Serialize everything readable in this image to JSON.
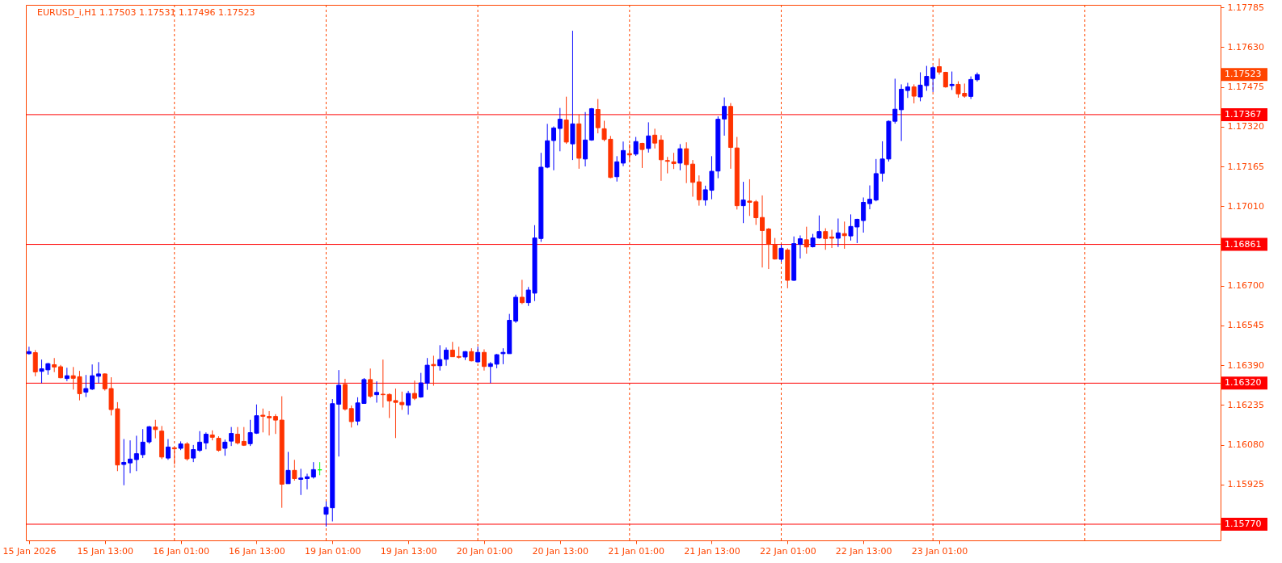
{
  "chart_data": {
    "type": "candlestick",
    "title": "EURUSD_i,H1 1.17503 1.17531 1.17496 1.17523",
    "categories": [
      "15 Jan 2026",
      null,
      null,
      null,
      null,
      null,
      null,
      null,
      null,
      null,
      null,
      null,
      "15 Jan 13:00",
      null,
      null,
      null,
      null,
      null,
      null,
      null,
      null,
      null,
      null,
      null,
      "16 Jan 01:00",
      null,
      null,
      null,
      null,
      null,
      null,
      null,
      null,
      null,
      null,
      null,
      "16 Jan 13:00",
      null,
      null,
      null,
      null,
      null,
      null,
      null,
      null,
      null,
      null,
      null,
      "19 Jan 01:00",
      null,
      null,
      null,
      null,
      null,
      null,
      null,
      null,
      null,
      null,
      null,
      "19 Jan 13:00",
      null,
      null,
      null,
      null,
      null,
      null,
      null,
      null,
      null,
      null,
      null,
      "20 Jan 01:00",
      null,
      null,
      null,
      null,
      null,
      null,
      null,
      null,
      null,
      null,
      null,
      "20 Jan 13:00",
      null,
      null,
      null,
      null,
      null,
      null,
      null,
      null,
      null,
      null,
      null,
      "21 Jan 01:00",
      null,
      null,
      null,
      null,
      null,
      null,
      null,
      null,
      null,
      null,
      null,
      "21 Jan 13:00",
      null,
      null,
      null,
      null,
      null,
      null,
      null,
      null,
      null,
      null,
      null,
      "22 Jan 01:00",
      null,
      null,
      null,
      null,
      null,
      null,
      null,
      null,
      null,
      null,
      null,
      "22 Jan 13:00",
      null,
      null,
      null,
      null,
      null,
      null,
      null,
      null,
      null,
      null,
      null,
      "23 Jan 01:00",
      null,
      null,
      null,
      null,
      null,
      null,
      null,
      null,
      null,
      null,
      null,
      null,
      null,
      null,
      null,
      null,
      null,
      null,
      null,
      null,
      null,
      null,
      null,
      null,
      null,
      null,
      null,
      null,
      null,
      null,
      null,
      null,
      null,
      null,
      null,
      null,
      null,
      null,
      null,
      null,
      null,
      null,
      null,
      null
    ],
    "ohlc": [
      [
        1.16435,
        1.16462,
        1.16431,
        1.16443
      ],
      [
        1.16439,
        1.16449,
        1.16347,
        1.16364
      ],
      [
        1.16366,
        1.16412,
        1.1632,
        1.16376
      ],
      [
        1.16372,
        1.16399,
        1.16353,
        1.16396
      ],
      [
        1.16392,
        1.16418,
        1.16363,
        1.16383
      ],
      [
        1.16384,
        1.16391,
        1.16339,
        1.16341
      ],
      [
        1.16338,
        1.1638,
        1.16328,
        1.16349
      ],
      [
        1.16349,
        1.16383,
        1.16295,
        1.16339
      ],
      [
        1.16345,
        1.16368,
        1.16253,
        1.16279
      ],
      [
        1.16285,
        1.16352,
        1.16266,
        1.16299
      ],
      [
        1.16297,
        1.16393,
        1.16293,
        1.16349
      ],
      [
        1.16347,
        1.16402,
        1.1632,
        1.16356
      ],
      [
        1.16356,
        1.16358,
        1.16291,
        1.16298
      ],
      [
        1.16299,
        1.16343,
        1.16194,
        1.16217
      ],
      [
        1.1622,
        1.16246,
        1.15977,
        1.16001
      ],
      [
        1.16003,
        1.16102,
        1.15922,
        1.16011
      ],
      [
        1.16009,
        1.16097,
        1.15969,
        1.16024
      ],
      [
        1.16022,
        1.16115,
        1.15977,
        1.16045
      ],
      [
        1.16041,
        1.16141,
        1.16028,
        1.1609
      ],
      [
        1.16091,
        1.16153,
        1.16084,
        1.1615
      ],
      [
        1.16149,
        1.16177,
        1.16105,
        1.16139
      ],
      [
        1.16133,
        1.16153,
        1.16024,
        1.16032
      ],
      [
        1.16028,
        1.16102,
        1.16021,
        1.16071
      ],
      [
        1.16068,
        1.1607,
        1.16003,
        1.16064
      ],
      [
        1.16066,
        1.16093,
        1.16059,
        1.16083
      ],
      [
        1.16083,
        1.1609,
        1.16018,
        1.16025
      ],
      [
        1.16028,
        1.16079,
        1.16012,
        1.16061
      ],
      [
        1.16058,
        1.16133,
        1.16052,
        1.1609
      ],
      [
        1.16087,
        1.16128,
        1.16062,
        1.16121
      ],
      [
        1.16118,
        1.16136,
        1.16097,
        1.16109
      ],
      [
        1.16105,
        1.16113,
        1.16053,
        1.16058
      ],
      [
        1.16066,
        1.161,
        1.16037,
        1.1609
      ],
      [
        1.16094,
        1.16149,
        1.16075,
        1.16124
      ],
      [
        1.16121,
        1.16149,
        1.16081,
        1.16087
      ],
      [
        1.16093,
        1.16149,
        1.16075,
        1.16078
      ],
      [
        1.16084,
        1.16177,
        1.16075,
        1.16127
      ],
      [
        1.16125,
        1.16237,
        1.16122,
        1.16193
      ],
      [
        1.16195,
        1.16221,
        1.16128,
        1.16191
      ],
      [
        1.1619,
        1.16211,
        1.16116,
        1.16185
      ],
      [
        1.1619,
        1.16199,
        1.16122,
        1.16176
      ],
      [
        1.16176,
        1.16269,
        1.15834,
        1.15926
      ],
      [
        1.15928,
        1.16052,
        1.15928,
        1.1598
      ],
      [
        1.1598,
        1.16021,
        1.1594,
        1.15948
      ],
      [
        1.15945,
        1.15986,
        1.15884,
        1.1595
      ],
      [
        1.15948,
        1.15967,
        1.15906,
        1.15955
      ],
      [
        1.15954,
        1.16012,
        1.15948,
        1.15983
      ],
      [
        1.15982,
        1.16012,
        1.15961,
        1.15982
      ],
      [
        1.15809,
        1.15859,
        1.15761,
        1.15836
      ],
      [
        1.15834,
        1.16258,
        1.15781,
        1.1624
      ],
      [
        1.16238,
        1.16371,
        1.16034,
        1.16312
      ],
      [
        1.16315,
        1.16337,
        1.16213,
        1.16219
      ],
      [
        1.16221,
        1.16233,
        1.16147,
        1.1617
      ],
      [
        1.16172,
        1.16265,
        1.16156,
        1.16243
      ],
      [
        1.16241,
        1.1634,
        1.16241,
        1.16334
      ],
      [
        1.16334,
        1.16377,
        1.16263,
        1.16269
      ],
      [
        1.16275,
        1.16327,
        1.16244,
        1.16284
      ],
      [
        1.16277,
        1.16412,
        1.16225,
        1.16275
      ],
      [
        1.16276,
        1.1628,
        1.16184,
        1.16251
      ],
      [
        1.16252,
        1.16299,
        1.16106,
        1.16245
      ],
      [
        1.16245,
        1.16287,
        1.16216,
        1.16236
      ],
      [
        1.16234,
        1.1629,
        1.16197,
        1.1628
      ],
      [
        1.1628,
        1.1633,
        1.16254,
        1.16261
      ],
      [
        1.16266,
        1.1636,
        1.16263,
        1.16321
      ],
      [
        1.1632,
        1.16418,
        1.16294,
        1.1639
      ],
      [
        1.16393,
        1.16427,
        1.1631,
        1.16388
      ],
      [
        1.16388,
        1.16468,
        1.16369,
        1.16412
      ],
      [
        1.16413,
        1.16459,
        1.16388,
        1.16449
      ],
      [
        1.16449,
        1.16481,
        1.16422,
        1.16423
      ],
      [
        1.16424,
        1.16462,
        1.16416,
        1.16421
      ],
      [
        1.16422,
        1.16445,
        1.1641,
        1.16443
      ],
      [
        1.16443,
        1.16456,
        1.16405,
        1.16407
      ],
      [
        1.16403,
        1.16462,
        1.164,
        1.1644
      ],
      [
        1.1644,
        1.16452,
        1.16369,
        1.16385
      ],
      [
        1.16385,
        1.16402,
        1.1632,
        1.16396
      ],
      [
        1.16394,
        1.16434,
        1.16378,
        1.16431
      ],
      [
        1.16435,
        1.16456,
        1.16394,
        1.1644
      ],
      [
        1.16435,
        1.1659,
        1.16435,
        1.16565
      ],
      [
        1.16562,
        1.16665,
        1.16555,
        1.16655
      ],
      [
        1.16655,
        1.16723,
        1.16628,
        1.16634
      ],
      [
        1.16634,
        1.16695,
        1.16621,
        1.16683
      ],
      [
        1.16671,
        1.16936,
        1.1664,
        1.16886
      ],
      [
        1.16884,
        1.17218,
        1.16871,
        1.17162
      ],
      [
        1.17162,
        1.17331,
        1.17158,
        1.17265
      ],
      [
        1.17266,
        1.17321,
        1.1715,
        1.17315
      ],
      [
        1.17313,
        1.17393,
        1.17224,
        1.17349
      ],
      [
        1.17346,
        1.17437,
        1.17253,
        1.1726
      ],
      [
        1.17253,
        1.17694,
        1.1719,
        1.17331
      ],
      [
        1.17331,
        1.17367,
        1.17156,
        1.17197
      ],
      [
        1.17194,
        1.17377,
        1.17165,
        1.17268
      ],
      [
        1.17268,
        1.17393,
        1.17265,
        1.1739
      ],
      [
        1.17387,
        1.17428,
        1.17294,
        1.17316
      ],
      [
        1.17312,
        1.17343,
        1.17263,
        1.1727
      ],
      [
        1.17271,
        1.17284,
        1.17119,
        1.17122
      ],
      [
        1.17125,
        1.17205,
        1.17106,
        1.17183
      ],
      [
        1.17178,
        1.17262,
        1.17166,
        1.17227
      ],
      [
        1.17215,
        1.17252,
        1.17183,
        1.1721
      ],
      [
        1.17213,
        1.1728,
        1.17206,
        1.17262
      ],
      [
        1.17255,
        1.17257,
        1.17159,
        1.17231
      ],
      [
        1.17235,
        1.17337,
        1.17219,
        1.17284
      ],
      [
        1.17287,
        1.17312,
        1.17235,
        1.17256
      ],
      [
        1.17268,
        1.17287,
        1.17109,
        1.17191
      ],
      [
        1.17188,
        1.17202,
        1.17138,
        1.17185
      ],
      [
        1.17183,
        1.17218,
        1.17155,
        1.17176
      ],
      [
        1.17178,
        1.17252,
        1.1715,
        1.17234
      ],
      [
        1.17234,
        1.17259,
        1.171,
        1.17172
      ],
      [
        1.17174,
        1.1719,
        1.17047,
        1.17103
      ],
      [
        1.17105,
        1.1713,
        1.17012,
        1.17035
      ],
      [
        1.17034,
        1.1709,
        1.17012,
        1.17074
      ],
      [
        1.17072,
        1.17205,
        1.17037,
        1.17146
      ],
      [
        1.17147,
        1.1736,
        1.17119,
        1.17349
      ],
      [
        1.1735,
        1.17434,
        1.17285,
        1.17399
      ],
      [
        1.17399,
        1.17412,
        1.17156,
        1.17239
      ],
      [
        1.17237,
        1.1728,
        1.16997,
        1.17012
      ],
      [
        1.17012,
        1.17105,
        1.16944,
        1.17034
      ],
      [
        1.1703,
        1.17115,
        1.16972,
        1.17025
      ],
      [
        1.17027,
        1.17034,
        1.16937,
        1.16965
      ],
      [
        1.16966,
        1.17052,
        1.16771,
        1.16915
      ],
      [
        1.16921,
        1.16925,
        1.16765,
        1.16861
      ],
      [
        1.16859,
        1.16886,
        1.16802,
        1.16804
      ],
      [
        1.16803,
        1.1686,
        1.16793,
        1.16846
      ],
      [
        1.16839,
        1.16846,
        1.1669,
        1.16721
      ],
      [
        1.16721,
        1.16892,
        1.16719,
        1.16864
      ],
      [
        1.16861,
        1.16896,
        1.16806,
        1.16883
      ],
      [
        1.16879,
        1.1693,
        1.16825,
        1.16851
      ],
      [
        1.16852,
        1.16902,
        1.16849,
        1.16886
      ],
      [
        1.16886,
        1.16974,
        1.16883,
        1.16911
      ],
      [
        1.16911,
        1.16924,
        1.1684,
        1.16884
      ],
      [
        1.1689,
        1.16918,
        1.16847,
        1.16885
      ],
      [
        1.16885,
        1.16962,
        1.16851,
        1.16906
      ],
      [
        1.16903,
        1.1695,
        1.16844,
        1.16895
      ],
      [
        1.16894,
        1.16978,
        1.16876,
        1.16931
      ],
      [
        1.16929,
        1.16961,
        1.16866,
        1.16959
      ],
      [
        1.16954,
        1.17044,
        1.16907,
        1.17025
      ],
      [
        1.1702,
        1.17091,
        1.16998,
        1.17037
      ],
      [
        1.17034,
        1.17194,
        1.17029,
        1.17137
      ],
      [
        1.17138,
        1.17263,
        1.17106,
        1.17194
      ],
      [
        1.17194,
        1.17344,
        1.17184,
        1.17341
      ],
      [
        1.17341,
        1.17507,
        1.17332,
        1.17388
      ],
      [
        1.17386,
        1.17485,
        1.17264,
        1.17466
      ],
      [
        1.17461,
        1.17491,
        1.17432,
        1.17475
      ],
      [
        1.17475,
        1.17485,
        1.17411,
        1.17439
      ],
      [
        1.17436,
        1.17532,
        1.17419,
        1.17482
      ],
      [
        1.1748,
        1.17557,
        1.1746,
        1.17516
      ],
      [
        1.17508,
        1.17557,
        1.17455,
        1.1755
      ],
      [
        1.17554,
        1.17586,
        1.17523,
        1.17533
      ],
      [
        1.17532,
        1.17534,
        1.17472,
        1.17475
      ],
      [
        1.1748,
        1.17535,
        1.17463,
        1.17485
      ],
      [
        1.17485,
        1.17497,
        1.17433,
        1.17448
      ],
      [
        1.1745,
        1.17488,
        1.17433,
        1.17439
      ],
      [
        1.17438,
        1.17516,
        1.17428,
        1.17504
      ],
      [
        1.17503,
        1.17531,
        1.17496,
        1.17523
      ],
      null,
      null,
      null,
      null,
      null,
      null,
      null,
      null,
      null,
      null,
      null,
      null,
      null,
      null,
      null,
      null,
      null,
      null,
      null,
      null,
      null,
      null,
      null,
      null,
      null,
      null,
      null,
      null,
      null,
      null,
      null,
      null,
      null,
      null,
      null,
      null,
      null,
      null
    ],
    "colors": [
      "#0000ff",
      "#ff3300",
      "#0000ff",
      "#0000ff",
      "#ff3300",
      "#ff3300",
      "#0000ff",
      "#ff3300",
      "#ff3300",
      "#0000ff",
      "#0000ff",
      "#0000ff",
      "#ff3300",
      "#ff3300",
      "#ff3300",
      "#0000ff",
      "#0000ff",
      "#0000ff",
      "#0000ff",
      "#0000ff",
      "#ff3300",
      "#ff3300",
      "#0000ff",
      "#ff3300",
      "#0000ff",
      "#ff3300",
      "#0000ff",
      "#0000ff",
      "#0000ff",
      "#ff3300",
      "#ff3300",
      "#0000ff",
      "#0000ff",
      "#ff3300",
      "#ff3300",
      "#0000ff",
      "#0000ff",
      "#ff3300",
      "#ff3300",
      "#ff3300",
      "#ff3300",
      "#0000ff",
      "#ff3300",
      "#0000ff",
      "#0000ff",
      "#0000ff",
      "#00ff00",
      "#0000ff",
      "#0000ff",
      "#0000ff",
      "#ff3300",
      "#ff3300",
      "#0000ff",
      "#0000ff",
      "#ff3300",
      "#0000ff",
      "#ff3300",
      "#ff3300",
      "#ff3300",
      "#ff3300",
      "#0000ff",
      "#ff3300",
      "#0000ff",
      "#0000ff",
      "#ff3300",
      "#0000ff",
      "#0000ff",
      "#ff3300",
      "#ff3300",
      "#0000ff",
      "#ff3300",
      "#0000ff",
      "#ff3300",
      "#0000ff",
      "#0000ff",
      "#0000ff",
      "#0000ff",
      "#0000ff",
      "#ff3300",
      "#0000ff",
      "#0000ff",
      "#0000ff",
      "#0000ff",
      "#0000ff",
      "#0000ff",
      "#ff3300",
      "#0000ff",
      "#ff3300",
      "#0000ff",
      "#0000ff",
      "#ff3300",
      "#ff3300",
      "#ff3300",
      "#0000ff",
      "#0000ff",
      "#ff3300",
      "#0000ff",
      "#ff3300",
      "#0000ff",
      "#ff3300",
      "#ff3300",
      "#ff3300",
      "#ff3300",
      "#0000ff",
      "#ff3300",
      "#ff3300",
      "#ff3300",
      "#0000ff",
      "#0000ff",
      "#0000ff",
      "#0000ff",
      "#ff3300",
      "#ff3300",
      "#0000ff",
      "#ff3300",
      "#ff3300",
      "#ff3300",
      "#ff3300",
      "#ff3300",
      "#0000ff",
      "#ff3300",
      "#0000ff",
      "#0000ff",
      "#ff3300",
      "#0000ff",
      "#0000ff",
      "#ff3300",
      "#ff3300",
      "#0000ff",
      "#ff3300",
      "#0000ff",
      "#0000ff",
      "#0000ff",
      "#0000ff",
      "#0000ff",
      "#0000ff",
      "#0000ff",
      "#0000ff",
      "#0000ff",
      "#0000ff",
      "#ff3300",
      "#0000ff",
      "#0000ff",
      "#0000ff",
      "#ff3300",
      "#ff3300",
      "#0000ff",
      "#ff3300",
      "#ff3300",
      "#0000ff",
      "#0000ff",
      null,
      null,
      null,
      null,
      null,
      null,
      null,
      null,
      null,
      null,
      null,
      null,
      null,
      null,
      null,
      null,
      null,
      null,
      null,
      null,
      null,
      null,
      null,
      null,
      null,
      null,
      null,
      null,
      null,
      null,
      null,
      null,
      null,
      null,
      null,
      null,
      null,
      null
    ],
    "ylim": [
      1.15707,
      1.17795
    ],
    "yticks": [
      1.15925,
      {
        "value": 1.1608,
        "label": "1.16080"
      },
      1.16235,
      {
        "value": 1.1639,
        "label": "1.16390"
      },
      1.16545,
      {
        "value": 1.167,
        "label": "1.16700"
      },
      {
        "value": 1.1701,
        "label": "1.17010"
      },
      1.17165,
      {
        "value": 1.1732,
        "label": "1.17320"
      },
      1.17475,
      {
        "value": 1.1763,
        "label": "1.17630"
      },
      1.17785
    ],
    "ref_lines": [
      {
        "axis": "y",
        "value": 1.17367,
        "label": "1.17367",
        "color": "#ff0000",
        "line_style": "solid"
      },
      {
        "axis": "y",
        "value": 1.16861,
        "label": "1.16861",
        "color": "#ff0000",
        "line_style": "solid"
      },
      {
        "axis": "y",
        "value": 1.1632,
        "label": "1.16320",
        "color": "#ff0000",
        "line_style": "solid"
      },
      {
        "axis": "y",
        "value": 1.1577,
        "label": "1.15770",
        "color": "#ff0000",
        "line_style": "solid"
      }
    ],
    "annotations": [
      "1.17523"
    ],
    "grid": false
  }
}
